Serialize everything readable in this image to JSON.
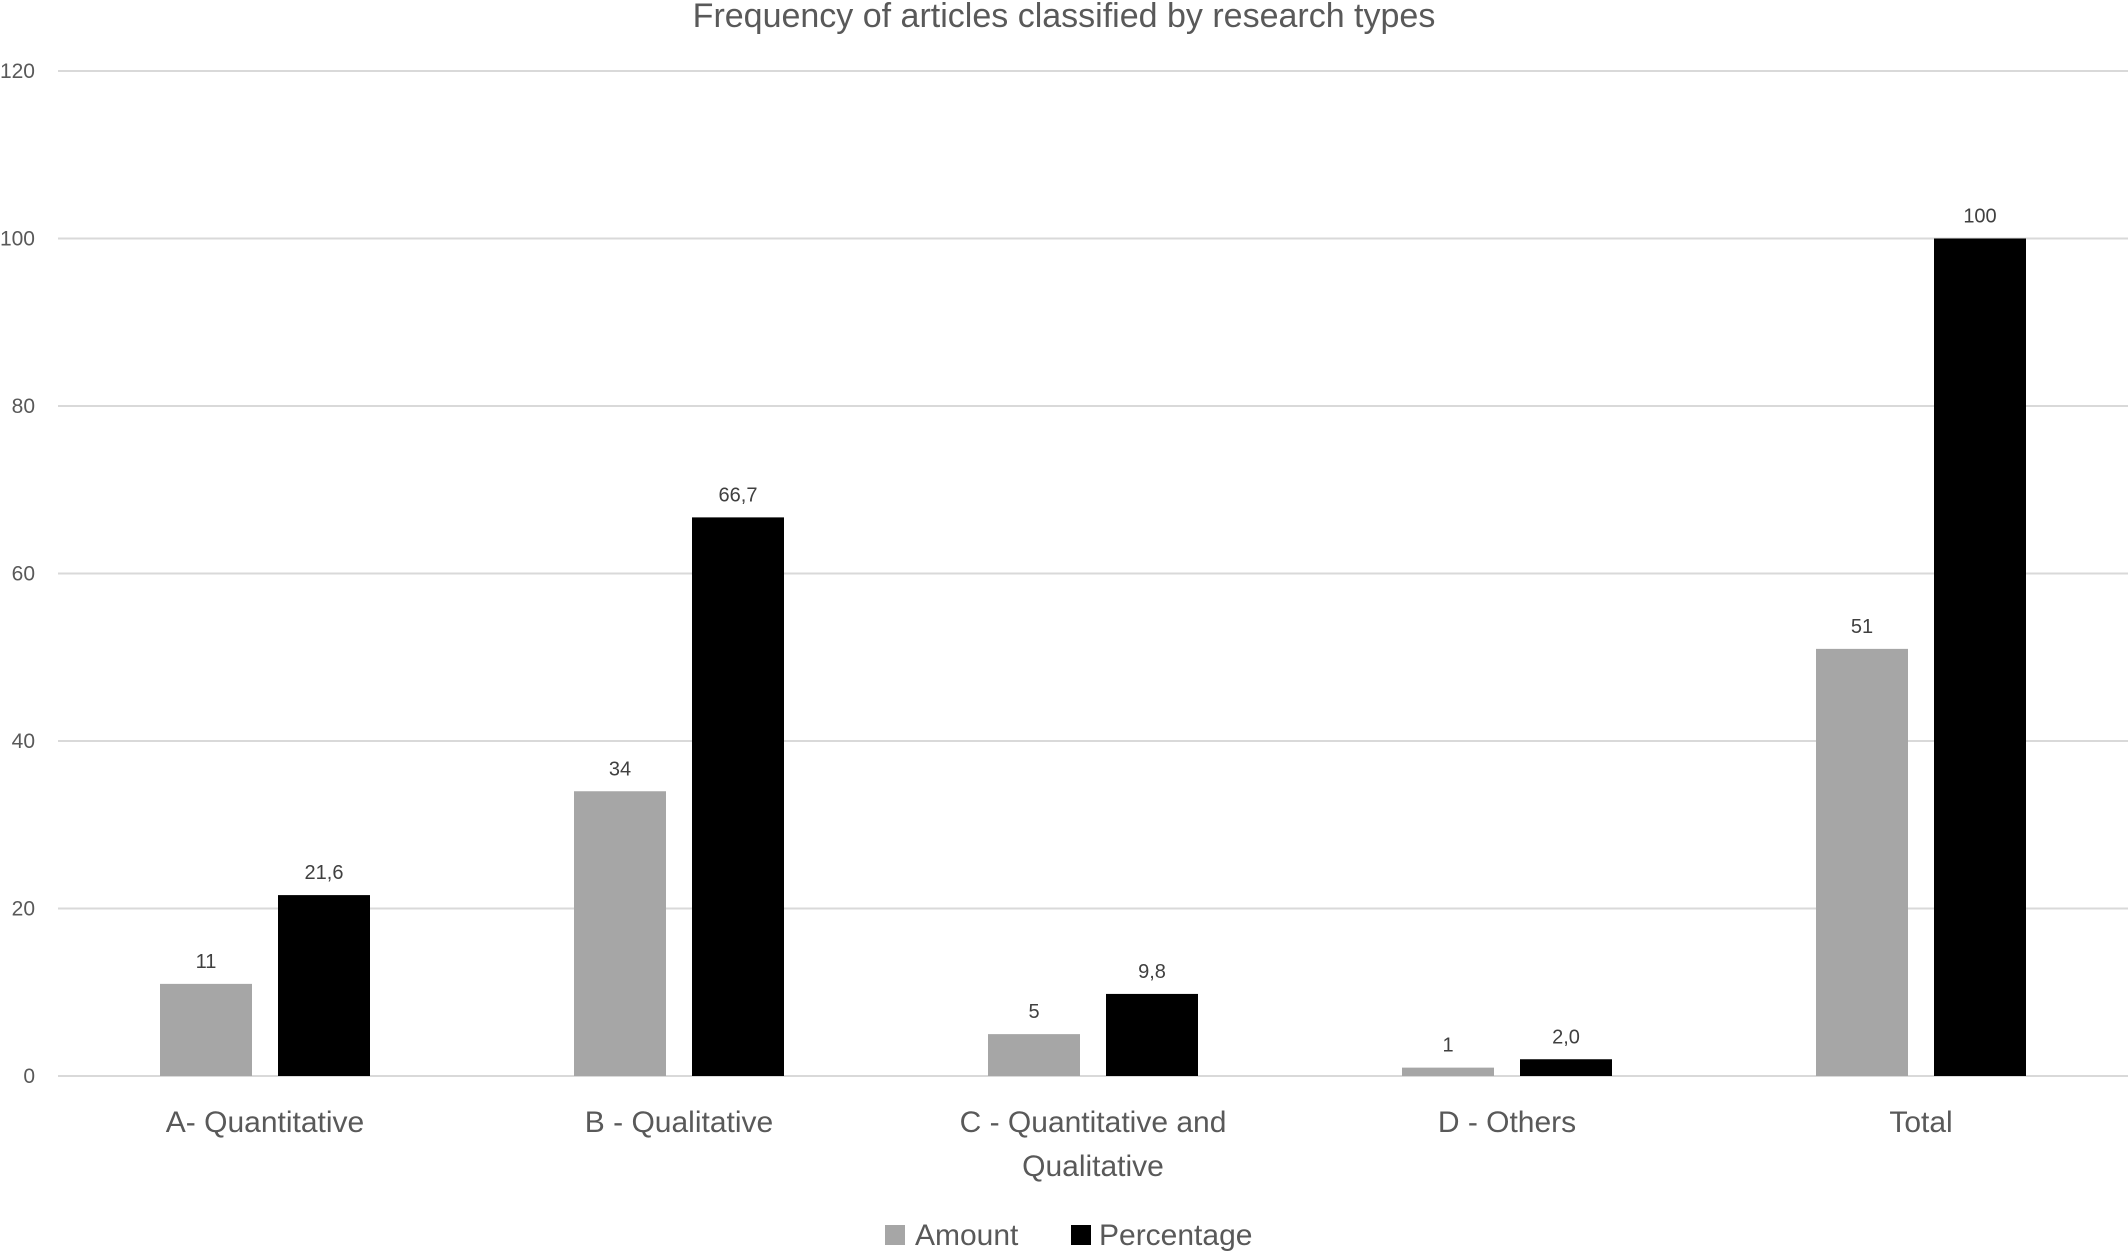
{
  "chart_data": {
    "type": "bar",
    "title": "Frequency of articles classified by research types",
    "categories": [
      [
        "A- Quantitative"
      ],
      [
        "B - Qualitative"
      ],
      [
        "C - Quantitative and",
        "Qualitative"
      ],
      [
        "D - Others"
      ],
      [
        "Total"
      ]
    ],
    "series": [
      {
        "name": "Amount",
        "color": "#a6a6a6",
        "values": [
          11,
          34,
          5,
          1,
          51
        ],
        "labels": [
          "11",
          "34",
          "5",
          "1",
          "51"
        ]
      },
      {
        "name": "Percentage",
        "color": "#000000",
        "values": [
          21.6,
          66.7,
          9.8,
          2.0,
          100
        ],
        "labels": [
          "21,6",
          "66,7",
          "9,8",
          "2,0",
          "100"
        ]
      }
    ],
    "ylim": [
      0,
      120
    ],
    "yticks": [
      0,
      20,
      40,
      60,
      80,
      100,
      120
    ],
    "grid": true,
    "legend": "bottom"
  }
}
